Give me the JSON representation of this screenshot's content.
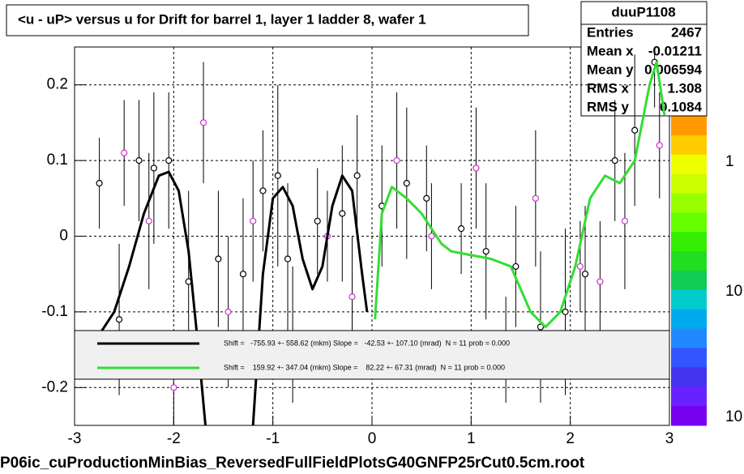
{
  "chart_data": {
    "type": "scatter",
    "title": "<u - uP>       versus   u for Drift for barrel 1, layer 1 ladder 8, wafer 1",
    "footer": "P06ic_cuProductionMinBias_ReversedFullFieldPlotsG40GNFP25rCut0.5cm.root",
    "xlim": [
      -3,
      3
    ],
    "ylim": [
      -0.25,
      0.25
    ],
    "xticks": [
      -3,
      -2,
      -1,
      0,
      1,
      2,
      3
    ],
    "yticks": [
      -0.2,
      -0.1,
      0,
      0.1,
      0.2
    ],
    "grid": true,
    "stats": {
      "name": "duuP1108",
      "rows": [
        [
          "Entries",
          "2467"
        ],
        [
          "Mean x",
          "-0.01211"
        ],
        [
          "Mean y",
          "0.006594"
        ],
        [
          "RMS x",
          "1.308"
        ],
        [
          "RMS y",
          "0.1084"
        ]
      ]
    },
    "color_scale": [
      "1",
      "10",
      "10"
    ],
    "series": [
      {
        "name": "points",
        "color": "#000000",
        "x": [
          -2.75,
          -2.55,
          -2.35,
          -2.2,
          -2.05,
          -1.85,
          -1.55,
          -1.3,
          -1.1,
          -0.95,
          -0.85,
          -0.55,
          -0.3,
          -0.15,
          0.1,
          0.35,
          0.55,
          0.9,
          1.15,
          1.45,
          1.7,
          1.95,
          2.15,
          2.45,
          2.65,
          2.85
        ],
        "values": [
          0.07,
          -0.11,
          0.1,
          0.09,
          0.1,
          -0.06,
          -0.03,
          -0.05,
          0.06,
          0.08,
          -0.03,
          0.02,
          0.03,
          0.08,
          0.04,
          0.07,
          0.05,
          0.01,
          -0.02,
          -0.04,
          -0.12,
          -0.1,
          -0.05,
          0.1,
          0.14,
          0.23
        ],
        "errors": [
          0.06,
          0.1,
          0.08,
          0.1,
          0.09,
          0.12,
          0.09,
          0.1,
          0.08,
          0.12,
          0.1,
          0.07,
          0.09,
          0.08,
          0.08,
          0.1,
          0.07,
          0.06,
          0.09,
          0.08,
          0.1,
          0.11,
          0.09,
          0.08,
          0.1,
          0.06
        ]
      },
      {
        "name": "points2",
        "color": "#cc33cc",
        "x": [
          -2.5,
          -2.25,
          -2.0,
          -1.7,
          -1.45,
          -1.2,
          -0.8,
          -0.45,
          -0.2,
          0.25,
          0.6,
          1.05,
          1.35,
          1.65,
          2.1,
          2.3,
          2.55,
          2.9
        ],
        "values": [
          0.11,
          0.02,
          -0.2,
          0.15,
          -0.1,
          0.02,
          -0.13,
          0.0,
          -0.08,
          0.1,
          0.0,
          0.09,
          -0.15,
          0.05,
          -0.04,
          -0.06,
          0.02,
          0.12
        ],
        "errors": [
          0.07,
          0.09,
          0.05,
          0.08,
          0.1,
          0.08,
          0.09,
          0.06,
          0.08,
          0.09,
          0.07,
          0.08,
          0.07,
          0.09,
          0.06,
          0.08,
          0.09,
          0.07
        ]
      }
    ],
    "fits": [
      {
        "name": "Shift =   -755.93 +- 558.62 (mkm) Slope =   -42.53 +- 107.10 (mrad)  N = 11 prob = 0.000",
        "color": "#000000",
        "x": [
          -2.75,
          -2.6,
          -2.45,
          -2.3,
          -2.15,
          -2.05,
          -1.95,
          -1.85,
          -1.75,
          -1.68,
          -1.4,
          -1.2,
          -1.1,
          -1.0,
          -0.9,
          -0.8,
          -0.7,
          -0.6,
          -0.5,
          -0.4,
          -0.3,
          -0.2,
          -0.1,
          -0.05
        ],
        "values": [
          -0.13,
          -0.1,
          -0.04,
          0.03,
          0.08,
          0.085,
          0.06,
          -0.02,
          -0.15,
          -0.25,
          null,
          -0.25,
          -0.05,
          0.05,
          0.065,
          0.04,
          -0.03,
          -0.07,
          -0.04,
          0.04,
          0.08,
          0.06,
          -0.05,
          -0.1
        ]
      },
      {
        "name": "Shift =    159.92 +- 347.04 (mkm) Slope =    82.22 +- 67.31 (mrad)  N = 11 prob = 0.000",
        "color": "#33dd33",
        "x": [
          0.03,
          0.1,
          0.2,
          0.35,
          0.5,
          0.6,
          0.7,
          0.8,
          1.0,
          1.2,
          1.4,
          1.6,
          1.75,
          1.9,
          2.05,
          2.2,
          2.35,
          2.5,
          2.65,
          2.8,
          2.87,
          2.95
        ],
        "values": [
          -0.11,
          0.03,
          0.065,
          0.05,
          0.03,
          0.01,
          -0.01,
          -0.02,
          -0.025,
          -0.03,
          -0.04,
          -0.1,
          -0.12,
          -0.1,
          -0.04,
          0.05,
          0.08,
          0.07,
          0.1,
          0.2,
          0.23,
          0.16
        ]
      }
    ]
  }
}
